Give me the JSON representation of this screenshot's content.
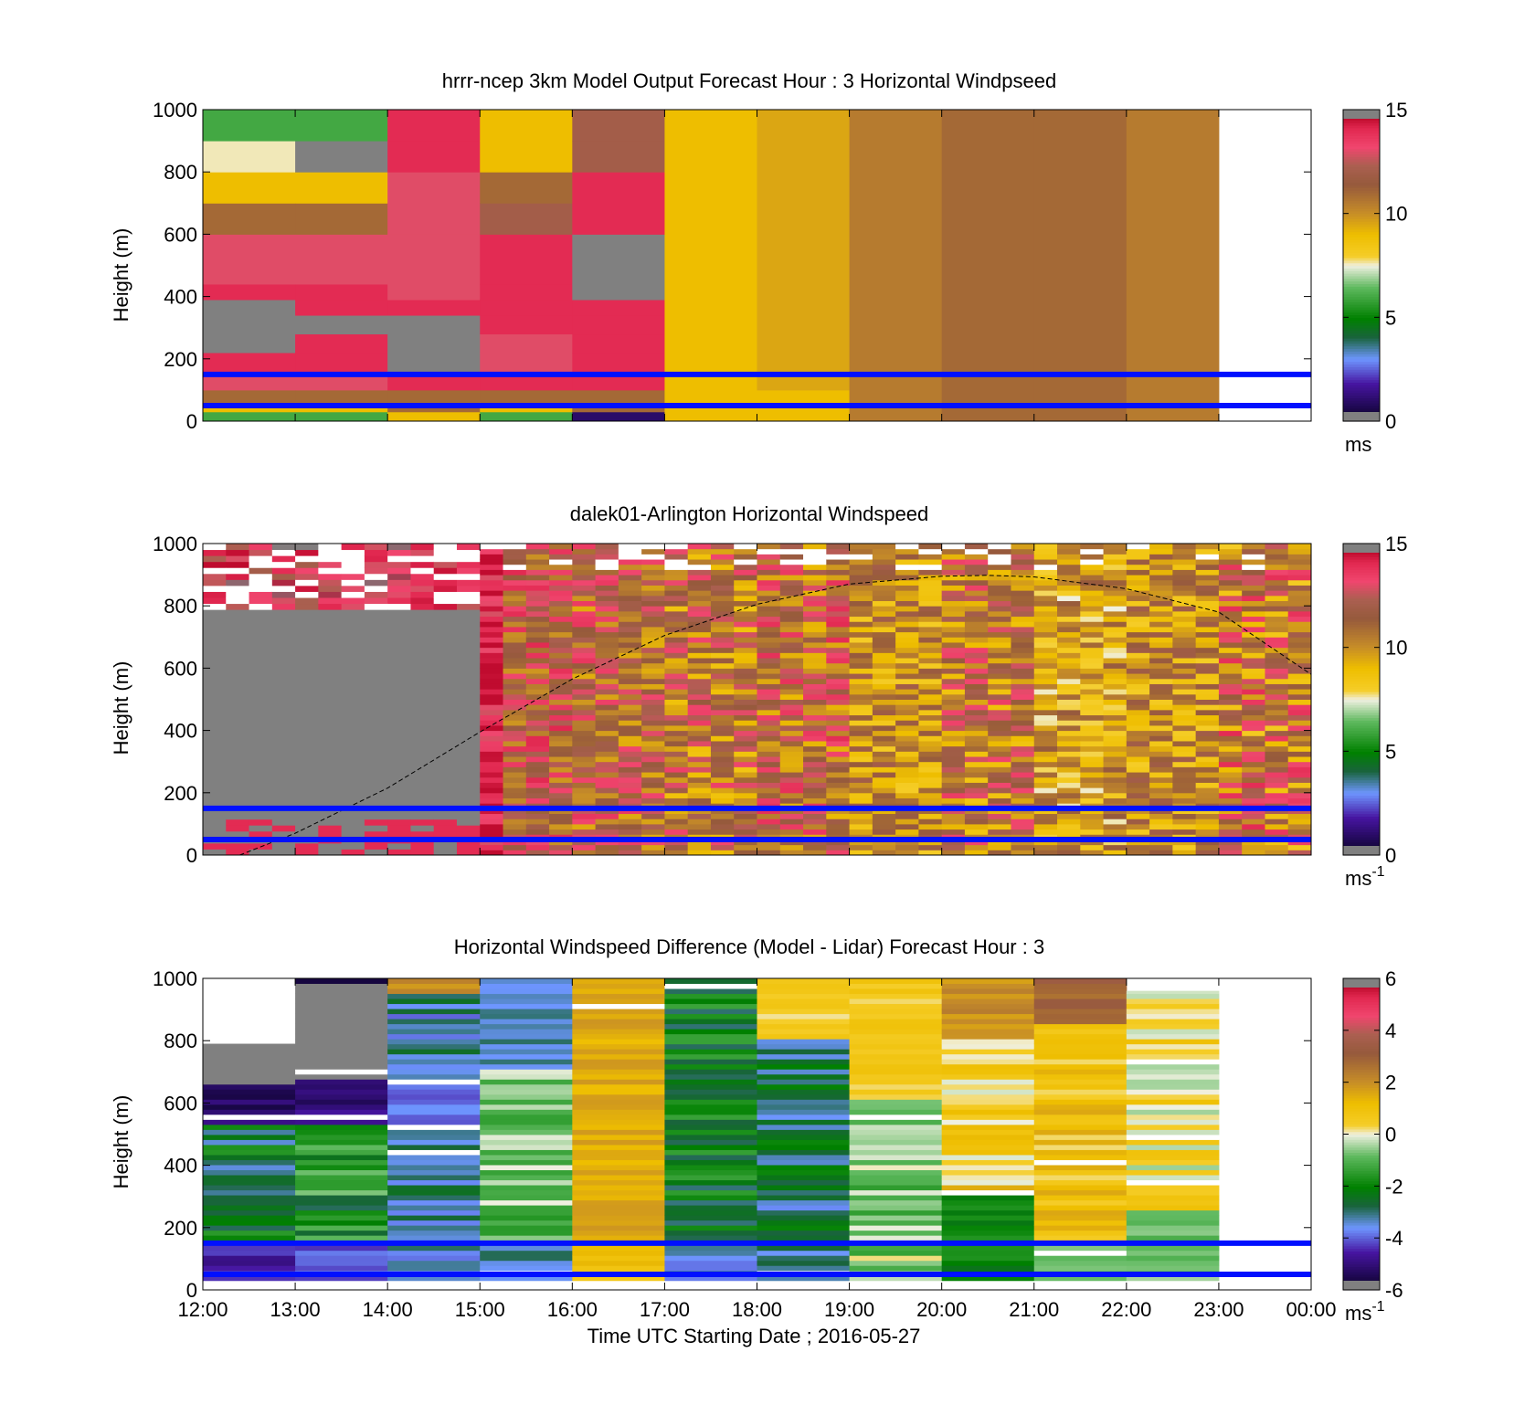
{
  "chart_data": [
    {
      "type": "heatmap",
      "title": "hrrr-ncep 3km Model Output   Forecast Hour : 3 Horizontal Windpseed",
      "ylabel": "Height (m)",
      "xlabel": "",
      "ylim": [
        0,
        1000
      ],
      "yticks": [
        "0",
        "200",
        "400",
        "600",
        "800",
        "1000"
      ],
      "xticks": [
        "12:00",
        "13:00",
        "14:00",
        "15:00",
        "16:00",
        "17:00",
        "18:00",
        "19:00",
        "20:00",
        "21:00",
        "22:00",
        "23:00",
        "00:00"
      ],
      "show_xtick_labels": false,
      "colorbar": {
        "min": 0,
        "max": 15,
        "ticks": [
          "0",
          "5",
          "10",
          "15"
        ],
        "unit": "ms",
        "unit_sup": ""
      },
      "horizontal_lines_m": [
        50,
        150
      ],
      "data_end_hour": 11,
      "columns": [
        {
          "hour": 0,
          "levels": [
            [
              30,
              6
            ],
            [
              60,
              9
            ],
            [
              100,
              11
            ],
            [
              160,
              13
            ],
            [
              220,
              14
            ],
            [
              280,
              15
            ],
            [
              340,
              0
            ],
            [
              390,
              15
            ],
            [
              440,
              14
            ],
            [
              500,
              13
            ],
            [
              600,
              13
            ],
            [
              700,
              11
            ],
            [
              800,
              9
            ],
            [
              900,
              7.6
            ],
            [
              1000,
              6
            ]
          ]
        },
        {
          "hour": 1,
          "levels": [
            [
              30,
              6
            ],
            [
              60,
              9
            ],
            [
              100,
              11
            ],
            [
              160,
              13
            ],
            [
              220,
              14
            ],
            [
              280,
              14
            ],
            [
              340,
              15
            ],
            [
              390,
              14
            ],
            [
              440,
              14
            ],
            [
              500,
              13
            ],
            [
              600,
              13
            ],
            [
              700,
              11
            ],
            [
              800,
              9
            ],
            [
              900,
              0
            ],
            [
              1000,
              6
            ]
          ]
        },
        {
          "hour": 2,
          "levels": [
            [
              30,
              9
            ],
            [
              60,
              11
            ],
            [
              100,
              11
            ],
            [
              160,
              14
            ],
            [
              220,
              15
            ],
            [
              280,
              15
            ],
            [
              340,
              15
            ],
            [
              390,
              14
            ],
            [
              440,
              13
            ],
            [
              500,
              13
            ],
            [
              600,
              13
            ],
            [
              700,
              13
            ],
            [
              800,
              13
            ],
            [
              900,
              14
            ],
            [
              1000,
              14
            ]
          ]
        },
        {
          "hour": 3,
          "levels": [
            [
              30,
              6
            ],
            [
              60,
              9
            ],
            [
              100,
              11
            ],
            [
              160,
              14
            ],
            [
              220,
              13
            ],
            [
              280,
              13
            ],
            [
              340,
              14
            ],
            [
              390,
              14
            ],
            [
              440,
              14
            ],
            [
              500,
              14
            ],
            [
              600,
              14
            ],
            [
              700,
              12
            ],
            [
              800,
              11
            ],
            [
              900,
              9
            ],
            [
              1000,
              9
            ]
          ]
        },
        {
          "hour": 4,
          "levels": [
            [
              30,
              1
            ],
            [
              60,
              11
            ],
            [
              100,
              11
            ],
            [
              160,
              14
            ],
            [
              220,
              14
            ],
            [
              280,
              14
            ],
            [
              340,
              14
            ],
            [
              390,
              14
            ],
            [
              440,
              15
            ],
            [
              500,
              15
            ],
            [
              600,
              15
            ],
            [
              700,
              14
            ],
            [
              800,
              14
            ],
            [
              900,
              12
            ],
            [
              1000,
              12
            ]
          ]
        },
        {
          "hour": 5,
          "levels": [
            [
              100,
              9
            ],
            [
              1000,
              9
            ]
          ]
        },
        {
          "hour": 6,
          "levels": [
            [
              100,
              9
            ],
            [
              1000,
              9.5
            ]
          ]
        },
        {
          "hour": 7,
          "levels": [
            [
              1000,
              10.5
            ]
          ]
        },
        {
          "hour": 8,
          "levels": [
            [
              1000,
              11
            ]
          ]
        },
        {
          "hour": 9,
          "levels": [
            [
              1000,
              11
            ]
          ]
        },
        {
          "hour": 10,
          "levels": [
            [
              1000,
              10.5
            ]
          ]
        }
      ]
    },
    {
      "type": "heatmap",
      "title": "dalek01-Arlington  Horizontal Windspeed",
      "ylabel": "Height (m)",
      "xlabel": "",
      "ylim": [
        0,
        1000
      ],
      "yticks": [
        "0",
        "200",
        "400",
        "600",
        "800",
        "1000"
      ],
      "xticks": [
        "12:00",
        "13:00",
        "14:00",
        "15:00",
        "16:00",
        "17:00",
        "18:00",
        "19:00",
        "20:00",
        "21:00",
        "22:00",
        "23:00",
        "00:00"
      ],
      "show_xtick_labels": false,
      "colorbar": {
        "min": 0,
        "max": 15,
        "ticks": [
          "0",
          "5",
          "10",
          "15"
        ],
        "unit": "ms",
        "unit_sup": "-1"
      },
      "horizontal_lines_m": [
        50,
        150
      ],
      "curve_points": [
        [
          0.4,
          0
        ],
        [
          1,
          70
        ],
        [
          2,
          215
        ],
        [
          3,
          395
        ],
        [
          4,
          565
        ],
        [
          5,
          705
        ],
        [
          6,
          805
        ],
        [
          7,
          870
        ],
        [
          8,
          895
        ],
        [
          8.5,
          898
        ],
        [
          9,
          893
        ],
        [
          10,
          855
        ],
        [
          11,
          780
        ],
        [
          12,
          580
        ]
      ],
      "segments": [
        {
          "from": 0,
          "to": 3,
          "nbins": 52,
          "base": 0,
          "jitter": 0,
          "topcap": 780
        },
        {
          "from": 3,
          "to": 3.25,
          "nbins": 60,
          "base": 14,
          "jitter": 1.2
        },
        {
          "from": 3.25,
          "to": 4.0,
          "nbins": 60,
          "base": 12,
          "jitter": 2.2
        },
        {
          "from": 4.0,
          "to": 5.0,
          "nbins": 60,
          "base": 11.5,
          "jitter": 2.2
        },
        {
          "from": 5.0,
          "to": 6.0,
          "nbins": 60,
          "base": 11,
          "jitter": 2.5
        },
        {
          "from": 6.0,
          "to": 7.0,
          "nbins": 60,
          "base": 11.5,
          "jitter": 2.5
        },
        {
          "from": 7.0,
          "to": 8.0,
          "nbins": 60,
          "base": 10,
          "jitter": 2.0
        },
        {
          "from": 8.0,
          "to": 9.0,
          "nbins": 60,
          "base": 11,
          "jitter": 2.5
        },
        {
          "from": 9.0,
          "to": 10.0,
          "nbins": 60,
          "base": 9.5,
          "jitter": 2.0
        },
        {
          "from": 10.0,
          "to": 11.0,
          "nbins": 60,
          "base": 10,
          "jitter": 2.0
        },
        {
          "from": 11.0,
          "to": 12.0,
          "nbins": 60,
          "base": 11,
          "jitter": 3.0
        }
      ]
    },
    {
      "type": "heatmap",
      "title": "Horizontal Windspeed Difference (Model - Lidar) Forecast Hour : 3",
      "ylabel": "Height (m)",
      "xlabel": "Time UTC  Starting Date ; 2016-05-27",
      "ylim": [
        0,
        1000
      ],
      "yticks": [
        "0",
        "200",
        "400",
        "600",
        "800",
        "1000"
      ],
      "xticks": [
        "12:00",
        "13:00",
        "14:00",
        "15:00",
        "16:00",
        "17:00",
        "18:00",
        "19:00",
        "20:00",
        "21:00",
        "22:00",
        "23:00",
        "00:00"
      ],
      "show_xtick_labels": true,
      "colorbar": {
        "min": -6,
        "max": 6,
        "ticks": [
          "-6",
          "-4",
          "-2",
          "0",
          "2",
          "4",
          "6"
        ],
        "unit": "ms",
        "unit_sup": "-1"
      },
      "horizontal_lines_m": [
        50,
        150
      ],
      "columns": [
        {
          "hour": 0,
          "base": -2.5,
          "jitter": 1.0,
          "top": 790,
          "bands": [
            [
              30,
              150,
              -4.5
            ],
            [
              520,
              660,
              -5.2
            ],
            [
              660,
              790,
              -6.5
            ]
          ]
        },
        {
          "hour": 1,
          "base": -1.8,
          "jitter": 1.2,
          "top": 1000,
          "bands": [
            [
              30,
              150,
              -4
            ],
            [
              520,
              670,
              -5
            ],
            [
              670,
              980,
              -6.5
            ],
            [
              980,
              1000,
              -5.5
            ]
          ]
        },
        {
          "hour": 2,
          "base": -3.2,
          "jitter": 0.8,
          "top": 1000,
          "bands": [
            [
              520,
              660,
              -4
            ],
            [
              950,
              1000,
              2
            ]
          ]
        },
        {
          "hour": 3,
          "base": -0.8,
          "jitter": 0.8,
          "top": 1000,
          "bands": [
            [
              30,
              150,
              -3.2
            ],
            [
              700,
              1000,
              -3.3
            ]
          ]
        },
        {
          "hour": 4,
          "base": 1.5,
          "jitter": 0.4,
          "top": 1000,
          "bands": [
            [
              30,
              150,
              1
            ]
          ]
        },
        {
          "hour": 5,
          "base": -2.2,
          "jitter": 0.9,
          "top": 1000,
          "bands": [
            [
              30,
              150,
              -3.5
            ]
          ]
        },
        {
          "hour": 6,
          "base": -2.8,
          "jitter": 0.9,
          "top": 1000,
          "bands": [
            [
              800,
              1000,
              0.5
            ]
          ]
        },
        {
          "hour": 7,
          "base": -0.6,
          "jitter": 0.9,
          "top": 1000,
          "bands": [
            [
              600,
              1000,
              0.6
            ]
          ]
        },
        {
          "hour": 8,
          "base": 0.7,
          "jitter": 0.9,
          "top": 1000,
          "bands": [
            [
              30,
              300,
              -2
            ],
            [
              800,
              1000,
              2
            ]
          ]
        },
        {
          "hour": 9,
          "base": 0.9,
          "jitter": 0.7,
          "top": 1000,
          "bands": [
            [
              30,
              150,
              -0.5
            ],
            [
              850,
              1000,
              3
            ]
          ]
        },
        {
          "hour": 10,
          "base": 0.3,
          "jitter": 0.8,
          "top": 960,
          "bands": [
            [
              30,
              250,
              -0.8
            ]
          ]
        }
      ]
    }
  ]
}
